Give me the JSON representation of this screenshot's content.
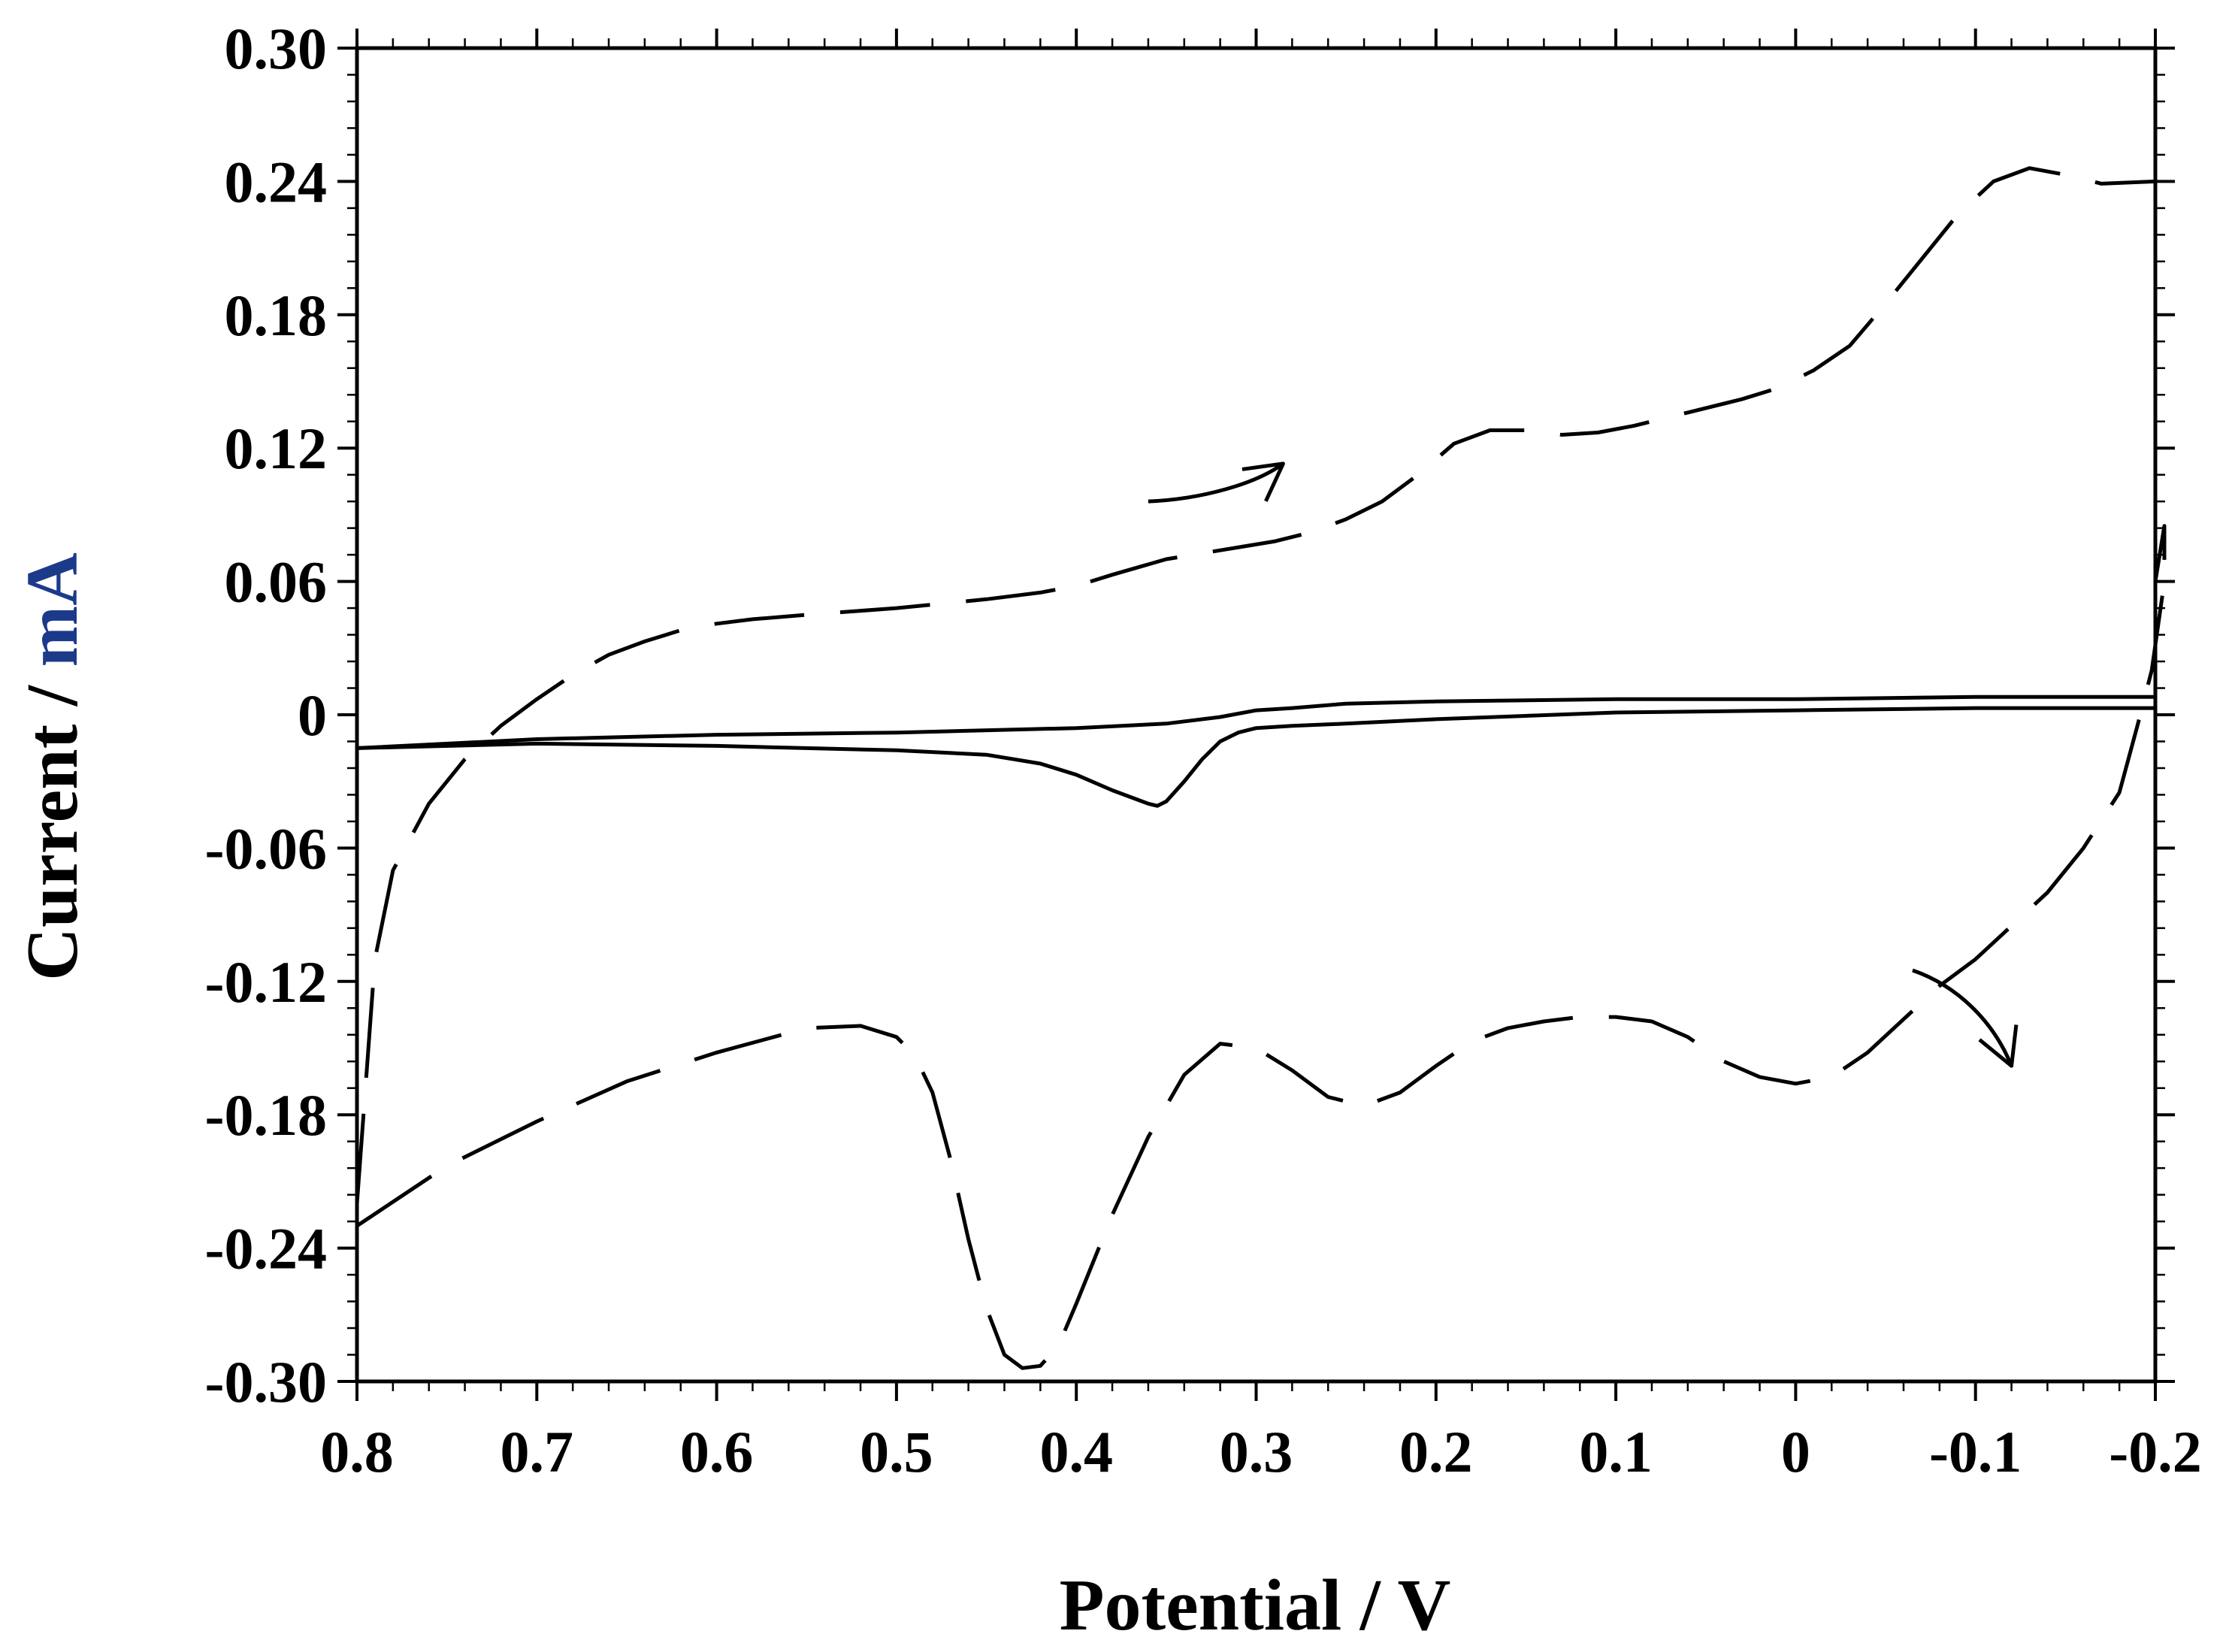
{
  "chart_data": {
    "type": "line",
    "title": "",
    "xlabel": "Potential / V",
    "ylabel_main": "Current / ",
    "ylabel_unit": "mA",
    "xlim": [
      0.8,
      -0.2
    ],
    "ylim": [
      -0.3,
      0.3
    ],
    "x_reversed": true,
    "grid": false,
    "legend": "none",
    "x_ticks": [
      {
        "value": 0.8,
        "label": "0.8"
      },
      {
        "value": 0.7,
        "label": "0.7"
      },
      {
        "value": 0.6,
        "label": "0.6"
      },
      {
        "value": 0.5,
        "label": "0.5"
      },
      {
        "value": 0.4,
        "label": "0.4"
      },
      {
        "value": 0.3,
        "label": "0.3"
      },
      {
        "value": 0.2,
        "label": "0.2"
      },
      {
        "value": 0.1,
        "label": "0.1"
      },
      {
        "value": 0.0,
        "label": "0"
      },
      {
        "value": -0.1,
        "label": "-0.1"
      },
      {
        "value": -0.2,
        "label": "-0.2"
      }
    ],
    "y_ticks": [
      {
        "value": 0.3,
        "label": "0.30"
      },
      {
        "value": 0.24,
        "label": "0.24"
      },
      {
        "value": 0.18,
        "label": "0.18"
      },
      {
        "value": 0.12,
        "label": "0.12"
      },
      {
        "value": 0.06,
        "label": "0.06"
      },
      {
        "value": 0.0,
        "label": "0"
      },
      {
        "value": -0.06,
        "label": "-0.06"
      },
      {
        "value": -0.12,
        "label": "-0.12"
      },
      {
        "value": -0.18,
        "label": "-0.18"
      },
      {
        "value": -0.24,
        "label": "-0.24"
      },
      {
        "value": -0.3,
        "label": "-0.30"
      }
    ],
    "series": [
      {
        "style": "dashed",
        "color": "#000000",
        "x": [
          0.8,
          0.79,
          0.78,
          0.76,
          0.74,
          0.72,
          0.7,
          0.68,
          0.66,
          0.64,
          0.62,
          0.6,
          0.58,
          0.55,
          0.5,
          0.45,
          0.42,
          0.4,
          0.38,
          0.35,
          0.32,
          0.29,
          0.27,
          0.25,
          0.23,
          0.21,
          0.19,
          0.17,
          0.15,
          0.13,
          0.11,
          0.09,
          0.06,
          0.03,
          0.01,
          -0.01,
          -0.03,
          -0.05,
          -0.07,
          -0.09,
          -0.11,
          -0.13,
          -0.15,
          -0.17,
          -0.2
        ],
        "y": [
          -0.22,
          -0.11,
          -0.07,
          -0.04,
          -0.02,
          -0.005,
          0.007,
          0.018,
          0.027,
          0.033,
          0.038,
          0.041,
          0.043,
          0.045,
          0.048,
          0.052,
          0.055,
          0.058,
          0.063,
          0.07,
          0.074,
          0.078,
          0.082,
          0.088,
          0.096,
          0.108,
          0.122,
          0.128,
          0.128,
          0.126,
          0.127,
          0.13,
          0.136,
          0.142,
          0.147,
          0.155,
          0.166,
          0.185,
          0.205,
          0.225,
          0.24,
          0.246,
          0.243,
          0.239,
          0.24
        ]
      },
      {
        "style": "dashed",
        "color": "#000000",
        "x": [
          -0.2,
          -0.205,
          -0.205,
          -0.198,
          -0.19,
          -0.18,
          -0.16,
          -0.14,
          -0.12,
          -0.1,
          -0.08,
          -0.06,
          -0.04,
          -0.02,
          0.0,
          0.02,
          0.04,
          0.06,
          0.08,
          0.1,
          0.12,
          0.14,
          0.16,
          0.18,
          0.2,
          0.22,
          0.24,
          0.26,
          0.28,
          0.3,
          0.32,
          0.34,
          0.36,
          0.38,
          0.4,
          0.41,
          0.42,
          0.43,
          0.44,
          0.45,
          0.46,
          0.47,
          0.48,
          0.49,
          0.5,
          0.52,
          0.55,
          0.6,
          0.65,
          0.7,
          0.75,
          0.8
        ],
        "y": [
          0.06,
          0.085,
          0.06,
          0.02,
          -0.005,
          -0.035,
          -0.06,
          -0.08,
          -0.095,
          -0.11,
          -0.122,
          -0.137,
          -0.152,
          -0.163,
          -0.166,
          -0.163,
          -0.156,
          -0.145,
          -0.138,
          -0.136,
          -0.136,
          -0.138,
          -0.141,
          -0.147,
          -0.158,
          -0.17,
          -0.176,
          -0.172,
          -0.16,
          -0.15,
          -0.148,
          -0.162,
          -0.19,
          -0.225,
          -0.265,
          -0.284,
          -0.293,
          -0.294,
          -0.288,
          -0.267,
          -0.236,
          -0.2,
          -0.17,
          -0.153,
          -0.145,
          -0.14,
          -0.141,
          -0.152,
          -0.165,
          -0.183,
          -0.203,
          -0.23
        ]
      },
      {
        "style": "solid",
        "color": "#000000",
        "x": [
          0.8,
          0.7,
          0.6,
          0.5,
          0.45,
          0.42,
          0.4,
          0.38,
          0.36,
          0.355,
          0.35,
          0.34,
          0.33,
          0.32,
          0.31,
          0.3,
          0.28,
          0.25,
          0.2,
          0.1,
          0.0,
          -0.1,
          -0.2
        ],
        "y": [
          -0.015,
          -0.013,
          -0.014,
          -0.016,
          -0.018,
          -0.022,
          -0.027,
          -0.034,
          -0.04,
          -0.041,
          -0.039,
          -0.03,
          -0.02,
          -0.012,
          -0.008,
          -0.006,
          -0.005,
          -0.004,
          -0.002,
          0.001,
          0.002,
          0.003,
          0.003
        ]
      },
      {
        "style": "solid",
        "color": "#000000",
        "x": [
          -0.2,
          -0.1,
          0.0,
          0.1,
          0.2,
          0.25,
          0.28,
          0.3,
          0.32,
          0.35,
          0.4,
          0.5,
          0.6,
          0.7,
          0.8
        ],
        "y": [
          0.008,
          0.008,
          0.007,
          0.007,
          0.006,
          0.005,
          0.003,
          0.002,
          -0.001,
          -0.004,
          -0.006,
          -0.008,
          -0.009,
          -0.011,
          -0.015
        ]
      }
    ],
    "annotations": [
      {
        "type": "arrow",
        "direction": "forward scan",
        "path": [
          [
            0.36,
            0.096
          ],
          [
            0.33,
            0.097
          ],
          [
            0.3,
            0.104
          ],
          [
            0.285,
            0.113
          ]
        ],
        "head_at": [
          0.285,
          0.113
        ]
      },
      {
        "type": "arrow",
        "direction": "reverse scan",
        "path": [
          [
            -0.065,
            -0.115
          ],
          [
            -0.09,
            -0.122
          ],
          [
            -0.11,
            -0.138
          ],
          [
            -0.12,
            -0.158
          ]
        ],
        "head_at": [
          -0.12,
          -0.158
        ]
      }
    ]
  }
}
